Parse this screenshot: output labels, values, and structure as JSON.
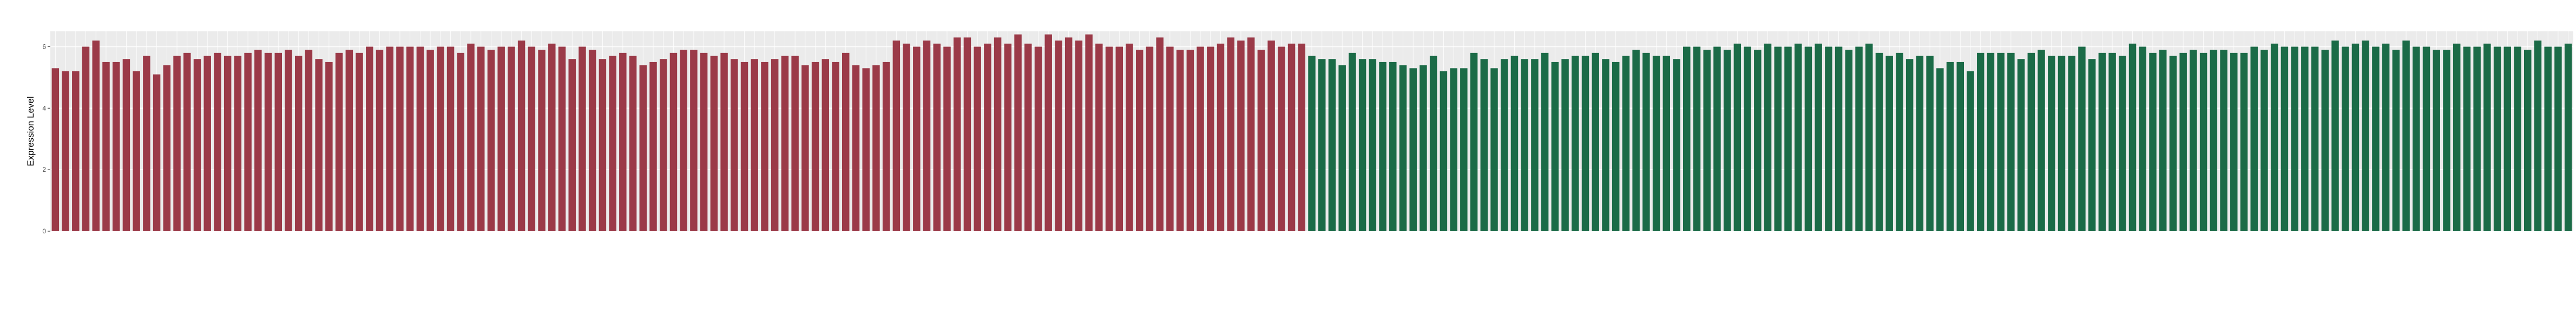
{
  "chart_data": {
    "type": "bar",
    "ylabel": "Expression Level",
    "xlabel": "",
    "title": "",
    "ylim": [
      0,
      6.5
    ],
    "yticks": [
      0,
      2,
      4,
      6
    ],
    "ytick_labels": [
      "0",
      "2",
      "4",
      "6"
    ],
    "grid": true,
    "background": "#ebebeb",
    "series": [
      {
        "color": "#9b3a48",
        "values": [
          5.3,
          5.2,
          5.2,
          6.0,
          6.2,
          5.5,
          5.5,
          5.6,
          5.2,
          5.7,
          5.1,
          5.4,
          5.7,
          5.8,
          5.6,
          5.7,
          5.8,
          5.7,
          5.7,
          5.8,
          5.9,
          5.8,
          5.8,
          5.9,
          5.7,
          5.9,
          5.6,
          5.5,
          5.8,
          5.9,
          5.8,
          6.0,
          5.9,
          6.0,
          6.0,
          6.0,
          6.0,
          5.9,
          6.0,
          6.0,
          5.8,
          6.1,
          6.0,
          5.9,
          6.0,
          6.0,
          6.2,
          6.0,
          5.9,
          6.1,
          6.0,
          5.6,
          6.0,
          5.9,
          5.6,
          5.7,
          5.8,
          5.7,
          5.4,
          5.5,
          5.6,
          5.8,
          5.9,
          5.9,
          5.8,
          5.7,
          5.8,
          5.6,
          5.5,
          5.6,
          5.5,
          5.6,
          5.7,
          5.7,
          5.4,
          5.5,
          5.6,
          5.5,
          5.8,
          5.4,
          5.3,
          5.4,
          5.5,
          6.2,
          6.1,
          6.0,
          6.2,
          6.1,
          6.0,
          6.3,
          6.3,
          6.0,
          6.1,
          6.3,
          6.1,
          6.4,
          6.1,
          6.0,
          6.4,
          6.2,
          6.3,
          6.2,
          6.4,
          6.1,
          6.0,
          6.0,
          6.1,
          5.9,
          6.0,
          6.3,
          6.0,
          5.9,
          5.9,
          6.0,
          6.0,
          6.1,
          6.3,
          6.2,
          6.3,
          5.9,
          6.2,
          6.0,
          6.1,
          6.1
        ]
      },
      {
        "color": "#1b6b47",
        "values": [
          5.7,
          5.6,
          5.6,
          5.4,
          5.8,
          5.6,
          5.6,
          5.5,
          5.5,
          5.4,
          5.3,
          5.4,
          5.7,
          5.2,
          5.3,
          5.3,
          5.8,
          5.6,
          5.3,
          5.6,
          5.7,
          5.6,
          5.6,
          5.8,
          5.5,
          5.6,
          5.7,
          5.7,
          5.8,
          5.6,
          5.5,
          5.7,
          5.9,
          5.8,
          5.7,
          5.7,
          5.6,
          6.0,
          6.0,
          5.9,
          6.0,
          5.9,
          6.1,
          6.0,
          5.9,
          6.1,
          6.0,
          6.0,
          6.1,
          6.0,
          6.1,
          6.0,
          6.0,
          5.9,
          6.0,
          6.1,
          5.8,
          5.7,
          5.8,
          5.6,
          5.7,
          5.7,
          5.3,
          5.5,
          5.5,
          5.2,
          5.8,
          5.8,
          5.8,
          5.8,
          5.6,
          5.8,
          5.9,
          5.7,
          5.7,
          5.7,
          6.0,
          5.6,
          5.8,
          5.8,
          5.7,
          6.1,
          6.0,
          5.8,
          5.9,
          5.7,
          5.8,
          5.9,
          5.8,
          5.9,
          5.9,
          5.8,
          5.8,
          6.0,
          5.9,
          6.1,
          6.0,
          6.0,
          6.0,
          6.0,
          5.9,
          6.2,
          6.0,
          6.1,
          6.2,
          6.0,
          6.1,
          5.9,
          6.2,
          6.0,
          6.0,
          5.9,
          5.9,
          6.1,
          6.0,
          6.0,
          6.1,
          6.0,
          6.0,
          6.0,
          5.9,
          6.2,
          6.0,
          6.0,
          6.1
        ]
      }
    ]
  }
}
